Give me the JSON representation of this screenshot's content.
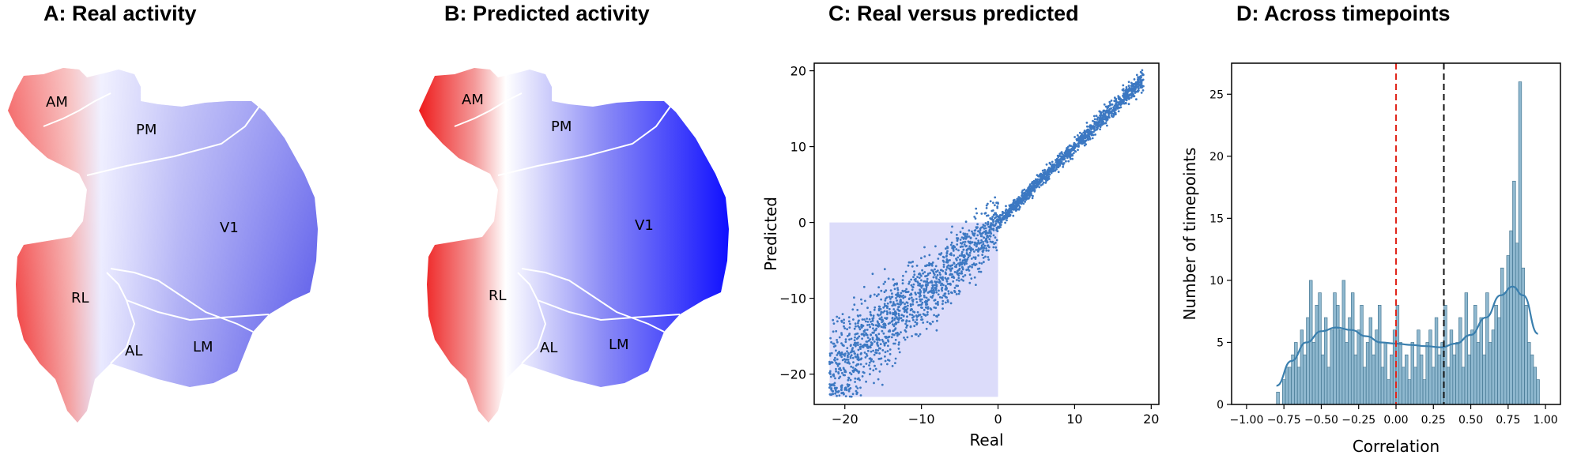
{
  "colors": {
    "blue_strong": "#1a1aff",
    "blue_light": "#dcdcff",
    "red_strong": "#ee1b1b",
    "scatter": "#3c78c2",
    "hist_bar": "#8fb8cf",
    "kde": "#3a7fae",
    "red_line": "#e0251b",
    "black_line": "#111111"
  },
  "panels": {
    "a": {
      "title": "A: Real activity"
    },
    "b": {
      "title": "B: Predicted activity"
    },
    "c": {
      "title": "C: Real versus predicted"
    },
    "d": {
      "title": "D: Across timepoints"
    }
  },
  "regions": {
    "am": "AM",
    "pm": "PM",
    "v1": "V1",
    "rl": "RL",
    "al": "AL",
    "lm": "LM"
  },
  "chart_data": [
    {
      "type": "scatter",
      "title": "C: Real versus predicted",
      "xlabel": "Real",
      "ylabel": "Predicted",
      "xlim": [
        -24,
        21
      ],
      "ylim": [
        -24,
        21
      ],
      "xticks": [
        -20,
        -10,
        0,
        10,
        20
      ],
      "yticks": [
        -20,
        -10,
        0,
        10,
        20
      ],
      "xtick_labels": [
        "−20",
        "−10",
        "0",
        "10",
        "20"
      ],
      "ytick_labels": [
        "−20",
        "−10",
        "0",
        "10",
        "20"
      ],
      "highlight_box": {
        "x": [
          -22,
          0
        ],
        "y": [
          -23,
          0
        ]
      },
      "trend": {
        "x_start": -22,
        "x_end": 19,
        "description": "points cluster tightly along y = x above 0, broad cloud below 0"
      }
    },
    {
      "type": "bar",
      "title": "D: Across timepoints",
      "xlabel": "Correlation",
      "ylabel": "Number of timepoints",
      "xlim": [
        -1.1,
        1.1
      ],
      "ylim": [
        0,
        27.5
      ],
      "xticks": [
        -1.0,
        -0.75,
        -0.5,
        -0.25,
        0.0,
        0.25,
        0.5,
        0.75,
        1.0
      ],
      "xtick_labels": [
        "−1.00",
        "−0.75",
        "−0.50",
        "−0.25",
        "0.00",
        "0.25",
        "0.50",
        "0.75",
        "1.00"
      ],
      "yticks": [
        0,
        5,
        10,
        15,
        20,
        25
      ],
      "ytick_labels": [
        "0",
        "5",
        "10",
        "15",
        "20",
        "25"
      ],
      "bin_start": -0.8,
      "bin_width": 0.02,
      "counts": [
        1,
        0,
        2,
        3,
        3,
        4,
        5,
        3,
        6,
        4,
        7,
        10,
        5,
        8,
        9,
        4,
        7,
        3,
        6,
        9,
        8,
        6,
        10,
        5,
        7,
        9,
        4,
        6,
        8,
        3,
        5,
        7,
        4,
        6,
        8,
        3,
        5,
        2,
        4,
        6,
        8,
        5,
        3,
        4,
        2,
        5,
        3,
        6,
        4,
        2,
        5,
        6,
        3,
        7,
        4,
        5,
        8,
        3,
        6,
        4,
        5,
        7,
        3,
        9,
        4,
        6,
        8,
        5,
        7,
        4,
        9,
        5,
        6,
        8,
        7,
        11,
        9,
        12,
        14,
        18,
        13,
        26,
        11,
        8,
        5,
        4,
        3,
        2
      ],
      "kde_x": [
        -0.8,
        -0.7,
        -0.6,
        -0.5,
        -0.4,
        -0.3,
        -0.2,
        -0.1,
        0.0,
        0.1,
        0.2,
        0.3,
        0.4,
        0.5,
        0.6,
        0.7,
        0.78,
        0.85,
        0.95
      ],
      "kde_y": [
        1.5,
        3.5,
        5.0,
        5.9,
        6.2,
        6.0,
        5.5,
        5.0,
        4.9,
        4.8,
        4.7,
        4.6,
        4.9,
        5.6,
        7.0,
        8.8,
        9.5,
        8.8,
        5.7
      ],
      "vlines": [
        {
          "x": 0.0,
          "color": "red",
          "style": "dashed"
        },
        {
          "x": 0.32,
          "color": "black",
          "style": "dashed"
        }
      ]
    }
  ]
}
